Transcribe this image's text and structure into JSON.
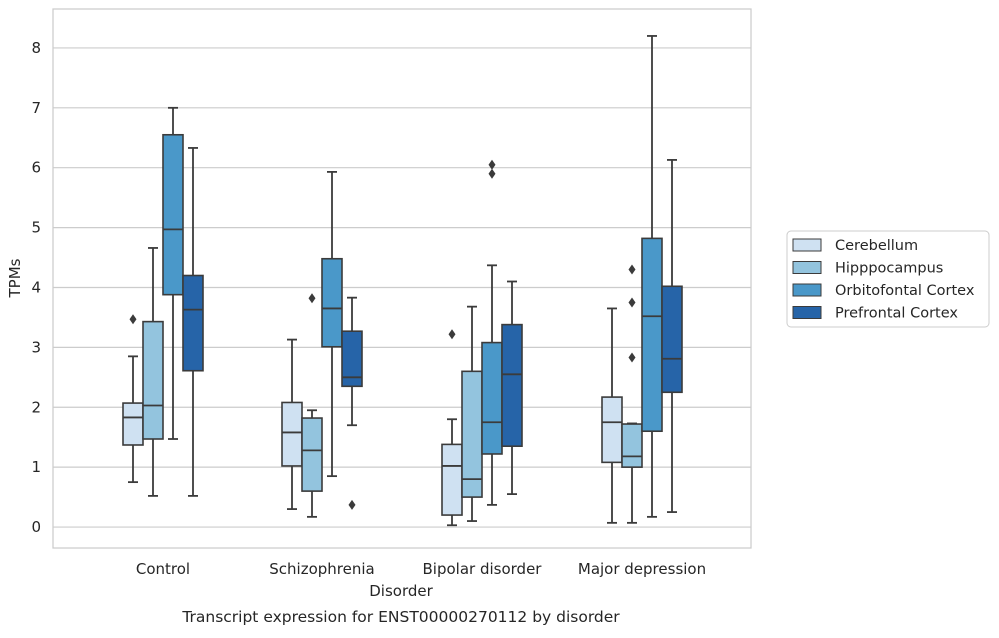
{
  "chart_data": {
    "type": "box",
    "title": "",
    "caption": "Transcript expression for ENST00000270112 by disorder",
    "xlabel": "Disorder",
    "ylabel": "TPMs",
    "ylim": [
      -0.35,
      8.65
    ],
    "yticks": [
      0,
      1,
      2,
      3,
      4,
      5,
      6,
      7,
      8
    ],
    "grid": "horizontal",
    "legend_position": "right",
    "categories": [
      "Control",
      "Schizophrenia",
      "Bipolar disorder",
      "Major depression"
    ],
    "series": [
      {
        "name": "Cerebellum",
        "color": "#cfe1f2",
        "boxes": [
          {
            "whislo": 0.75,
            "q1": 1.37,
            "med": 1.83,
            "q3": 2.07,
            "whishi": 2.85,
            "fliers": [
              3.47
            ]
          },
          {
            "whislo": 0.3,
            "q1": 1.02,
            "med": 1.58,
            "q3": 2.08,
            "whishi": 3.13,
            "fliers": []
          },
          {
            "whislo": 0.03,
            "q1": 0.2,
            "med": 1.02,
            "q3": 1.38,
            "whishi": 1.8,
            "fliers": [
              3.22
            ]
          },
          {
            "whislo": 0.07,
            "q1": 1.08,
            "med": 1.75,
            "q3": 2.17,
            "whishi": 3.65,
            "fliers": []
          }
        ]
      },
      {
        "name": "Hipppocampus",
        "color": "#93c4de",
        "boxes": [
          {
            "whislo": 0.52,
            "q1": 1.47,
            "med": 2.03,
            "q3": 3.43,
            "whishi": 4.66,
            "fliers": []
          },
          {
            "whislo": 0.17,
            "q1": 0.6,
            "med": 1.28,
            "q3": 1.82,
            "whishi": 1.95,
            "fliers": [
              3.82
            ]
          },
          {
            "whislo": 0.1,
            "q1": 0.5,
            "med": 0.8,
            "q3": 2.6,
            "whishi": 3.68,
            "fliers": []
          },
          {
            "whislo": 0.07,
            "q1": 1.0,
            "med": 1.18,
            "q3": 1.72,
            "whishi": 1.73,
            "fliers": [
              2.83,
              3.75,
              4.3
            ]
          }
        ]
      },
      {
        "name": "Orbitofontal Cortex",
        "color": "#4a98c9",
        "boxes": [
          {
            "whislo": 1.47,
            "q1": 3.88,
            "med": 4.97,
            "q3": 6.55,
            "whishi": 7.0,
            "fliers": []
          },
          {
            "whislo": 0.85,
            "q1": 3.01,
            "med": 3.65,
            "q3": 4.48,
            "whishi": 5.93,
            "fliers": []
          },
          {
            "whislo": 0.37,
            "q1": 1.22,
            "med": 1.75,
            "q3": 3.08,
            "whishi": 4.37,
            "fliers": [
              5.9,
              6.05
            ]
          },
          {
            "whislo": 0.17,
            "q1": 1.6,
            "med": 3.52,
            "q3": 4.82,
            "whishi": 8.2,
            "fliers": []
          }
        ]
      },
      {
        "name": "Prefrontal Cortex",
        "color": "#2664a8",
        "boxes": [
          {
            "whislo": 0.52,
            "q1": 2.61,
            "med": 3.63,
            "q3": 4.2,
            "whishi": 6.33,
            "fliers": []
          },
          {
            "whislo": 1.7,
            "q1": 2.35,
            "med": 2.5,
            "q3": 3.27,
            "whishi": 3.83,
            "fliers": [
              0.37
            ]
          },
          {
            "whislo": 0.55,
            "q1": 1.35,
            "med": 2.55,
            "q3": 3.38,
            "whishi": 4.1,
            "fliers": []
          },
          {
            "whislo": 0.25,
            "q1": 2.25,
            "med": 2.81,
            "q3": 4.02,
            "whishi": 6.13,
            "fliers": []
          }
        ]
      }
    ]
  }
}
